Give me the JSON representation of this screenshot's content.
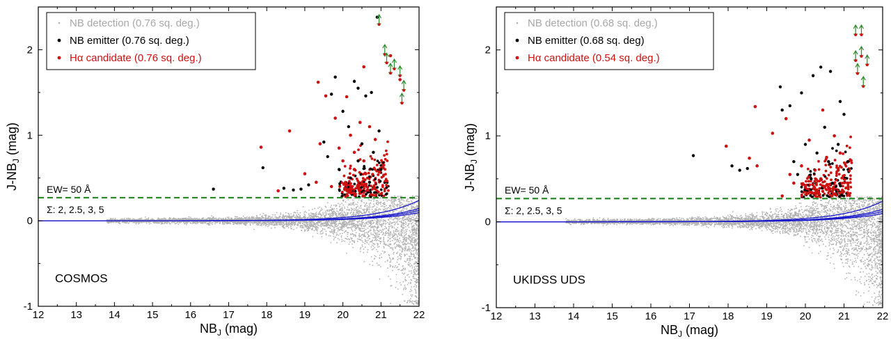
{
  "chart_data": [
    {
      "type": "scatter",
      "field": "COSMOS",
      "xlabel": "NB_J (mag)",
      "ylabel": "J-NB_J (mag)",
      "xlim": [
        12,
        22
      ],
      "ylim": [
        -1,
        2.5
      ],
      "x_ticks": [
        12,
        13,
        14,
        15,
        16,
        17,
        18,
        19,
        20,
        21,
        22
      ],
      "y_ticks": [
        -1,
        0,
        1,
        2
      ],
      "legend": {
        "placement": "top-left",
        "items": [
          {
            "label": "NB detection (0.76 sq. deg.)",
            "color": "#b0b0b0"
          },
          {
            "label": "NB emitter (0.76 sq. deg.)",
            "color": "#000000"
          },
          {
            "label": "Hα candidate (0.76 sq. deg.)",
            "color": "#cc1111"
          }
        ]
      },
      "ew_line": {
        "label": "EW= 50 Å",
        "y": 0.27,
        "color": "#2a8a2a"
      },
      "sigma_label": "Σ: 2, 2.5, 3, 5",
      "sigma_curves": [
        {
          "sigma": 2,
          "m0": 19.75
        },
        {
          "sigma": 2.5,
          "m0": 19.5
        },
        {
          "sigma": 3,
          "m0": 19.3
        },
        {
          "sigma": 5,
          "m0": 18.75
        }
      ],
      "emitters": [
        [
          16.6,
          0.37
        ],
        [
          17.9,
          0.62
        ],
        [
          18.45,
          0.38
        ],
        [
          18.7,
          0.36
        ],
        [
          18.9,
          0.37
        ],
        [
          19.1,
          0.42
        ],
        [
          19.5,
          0.92
        ],
        [
          19.7,
          1.48
        ],
        [
          19.8,
          1.68
        ],
        [
          20.0,
          1.28
        ],
        [
          20.3,
          1.63
        ],
        [
          20.4,
          1.55
        ],
        [
          20.6,
          1.46
        ],
        [
          20.75,
          1.5
        ],
        [
          20.9,
          2.38
        ],
        [
          20.15,
          1.1
        ],
        [
          20.5,
          0.9
        ],
        [
          20.8,
          0.8
        ],
        [
          19.9,
          0.6
        ],
        [
          20.2,
          0.5
        ],
        [
          20.7,
          0.45
        ],
        [
          21.0,
          0.6
        ],
        [
          20.4,
          0.7
        ],
        [
          19.6,
          0.75
        ],
        [
          20.95,
          1.05
        ]
      ],
      "halpha": [
        [
          17.85,
          0.86
        ],
        [
          18.6,
          1.05
        ],
        [
          18.3,
          0.35
        ],
        [
          19.0,
          0.55
        ],
        [
          19.3,
          0.45
        ],
        [
          19.35,
          1.62
        ],
        [
          19.55,
          1.46
        ],
        [
          19.4,
          0.9
        ],
        [
          19.8,
          1.2
        ],
        [
          20.1,
          1.45
        ],
        [
          20.55,
          1.8
        ],
        [
          21.25,
          1.93
        ],
        [
          21.5,
          1.65
        ],
        [
          20.0,
          0.7
        ],
        [
          20.3,
          0.6
        ],
        [
          20.6,
          0.55
        ],
        [
          20.2,
          1.0
        ],
        [
          20.45,
          1.15
        ],
        [
          20.7,
          1.1
        ],
        [
          20.85,
          0.95
        ],
        [
          19.7,
          0.4
        ],
        [
          20.05,
          0.38
        ],
        [
          20.4,
          0.42
        ],
        [
          20.65,
          0.36
        ],
        [
          19.9,
          0.85
        ],
        [
          20.3,
          0.8
        ],
        [
          20.55,
          0.7
        ]
      ],
      "lower_limits": [
        [
          20.95,
          2.32
        ],
        [
          21.1,
          1.97
        ],
        [
          21.15,
          1.87
        ],
        [
          21.35,
          1.8
        ],
        [
          21.5,
          1.72
        ],
        [
          21.55,
          1.4
        ],
        [
          21.6,
          1.55
        ],
        [
          21.25,
          1.75
        ]
      ]
    },
    {
      "type": "scatter",
      "field": "UKIDSS UDS",
      "xlabel": "NB_J (mag)",
      "ylabel": "J-NB_J (mag)",
      "xlim": [
        12,
        22
      ],
      "ylim": [
        -1,
        2.5
      ],
      "x_ticks": [
        12,
        13,
        14,
        15,
        16,
        17,
        18,
        19,
        20,
        21,
        22
      ],
      "y_ticks": [
        -1,
        0,
        1,
        2
      ],
      "legend": {
        "placement": "top-left",
        "items": [
          {
            "label": "NB detection (0.68 sq. deg.)",
            "color": "#b0b0b0"
          },
          {
            "label": "NB emitter (0.68 sq. deg)",
            "color": "#000000"
          },
          {
            "label": "Hα candidate (0.54 sq. deg.)",
            "color": "#cc1111"
          }
        ]
      },
      "ew_line": {
        "label": "EW= 50 Å",
        "y": 0.27,
        "color": "#2a8a2a"
      },
      "sigma_label": "Σ: 2, 2.5, 3, 5",
      "sigma_curves": [
        {
          "sigma": 2,
          "m0": 19.75
        },
        {
          "sigma": 2.5,
          "m0": 19.5
        },
        {
          "sigma": 3,
          "m0": 19.3
        },
        {
          "sigma": 5,
          "m0": 18.75
        }
      ],
      "emitters": [
        [
          17.1,
          0.77
        ],
        [
          18.1,
          0.65
        ],
        [
          18.3,
          0.6
        ],
        [
          18.5,
          0.62
        ],
        [
          19.35,
          1.57
        ],
        [
          19.4,
          1.3
        ],
        [
          19.6,
          1.35
        ],
        [
          19.9,
          1.5
        ],
        [
          20.2,
          1.7
        ],
        [
          20.4,
          1.8
        ],
        [
          20.65,
          1.75
        ],
        [
          20.9,
          1.4
        ],
        [
          21.0,
          1.25
        ],
        [
          20.0,
          0.9
        ],
        [
          20.3,
          0.8
        ],
        [
          20.6,
          0.7
        ],
        [
          19.8,
          0.55
        ],
        [
          20.15,
          0.5
        ],
        [
          20.7,
          0.45
        ],
        [
          20.85,
          0.9
        ],
        [
          20.5,
          1.1
        ],
        [
          19.7,
          0.7
        ],
        [
          21.1,
          0.7
        ]
      ],
      "halpha": [
        [
          17.95,
          0.88
        ],
        [
          18.55,
          0.74
        ],
        [
          18.75,
          0.65
        ],
        [
          18.7,
          1.34
        ],
        [
          19.15,
          1.03
        ],
        [
          19.5,
          1.2
        ],
        [
          19.4,
          0.3
        ],
        [
          19.7,
          0.45
        ],
        [
          20.0,
          0.4
        ],
        [
          20.3,
          0.35
        ],
        [
          20.6,
          0.4
        ],
        [
          20.25,
          0.6
        ],
        [
          20.55,
          0.75
        ],
        [
          20.85,
          0.6
        ],
        [
          20.1,
          0.95
        ],
        [
          20.45,
          1.3
        ],
        [
          20.75,
          1.0
        ],
        [
          20.9,
          0.8
        ],
        [
          19.9,
          0.65
        ],
        [
          20.4,
          0.5
        ],
        [
          19.6,
          0.55
        ],
        [
          21.1,
          0.45
        ]
      ],
      "lower_limits": [
        [
          21.3,
          2.2
        ],
        [
          21.45,
          2.2
        ],
        [
          21.3,
          1.9
        ],
        [
          21.45,
          1.95
        ],
        [
          21.5,
          1.6
        ],
        [
          21.6,
          1.85
        ],
        [
          21.35,
          1.75
        ]
      ]
    }
  ]
}
